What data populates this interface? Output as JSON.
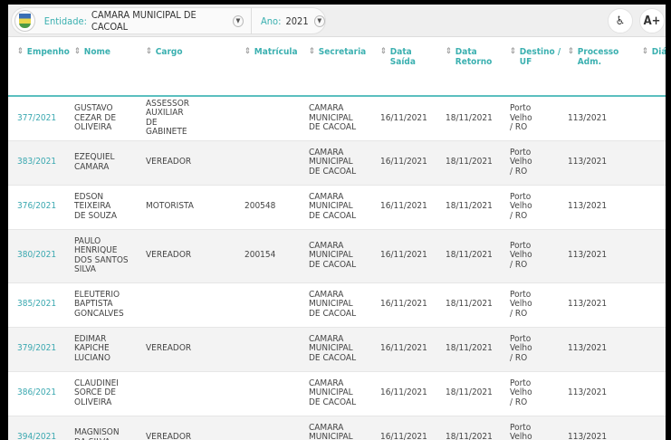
{
  "header": {
    "entity_label": "Entidade:",
    "entity_value": "CAMARA MUNICIPAL DE CACOAL",
    "year_label": "Ano:",
    "year_value": "2021",
    "accessibility_icon": "wheelchair-icon",
    "font_increase_label": "A+"
  },
  "table": {
    "columns": [
      "Empenho",
      "Nome",
      "Cargo",
      "Matrícula",
      "Secretaria",
      "Data Saída",
      "Data Retorno",
      "Destino / UF",
      "Processo Adm.",
      "Diá"
    ],
    "rows": [
      {
        "empenho": "377/2021",
        "nome": "GUSTAVO CEZAR DE OLIVEIRA",
        "cargo": "ASSESSOR AUXILIAR DE GABINETE",
        "matricula": "",
        "secretaria": "CAMARA MUNICIPAL DE CACOAL",
        "saida": "16/11/2021",
        "retorno": "18/11/2021",
        "destino": "Porto Velho / RO",
        "processo": "113/2021"
      },
      {
        "empenho": "383/2021",
        "nome": "EZEQUIEL CAMARA",
        "cargo": "VEREADOR",
        "matricula": "",
        "secretaria": "CAMARA MUNICIPAL DE CACOAL",
        "saida": "16/11/2021",
        "retorno": "18/11/2021",
        "destino": "Porto Velho / RO",
        "processo": "113/2021"
      },
      {
        "empenho": "376/2021",
        "nome": "EDSON TEIXEIRA DE SOUZA",
        "cargo": "MOTORISTA",
        "matricula": "200548",
        "secretaria": "CAMARA MUNICIPAL DE CACOAL",
        "saida": "16/11/2021",
        "retorno": "18/11/2021",
        "destino": "Porto Velho / RO",
        "processo": "113/2021"
      },
      {
        "empenho": "380/2021",
        "nome": "PAULO HENRIQUE DOS SANTOS SILVA",
        "cargo": "VEREADOR",
        "matricula": "200154",
        "secretaria": "CAMARA MUNICIPAL DE CACOAL",
        "saida": "16/11/2021",
        "retorno": "18/11/2021",
        "destino": "Porto Velho / RO",
        "processo": "113/2021"
      },
      {
        "empenho": "385/2021",
        "nome": "ELEUTERIO BAPTISTA GONCALVES",
        "cargo": "",
        "matricula": "",
        "secretaria": "CAMARA MUNICIPAL DE CACOAL",
        "saida": "16/11/2021",
        "retorno": "18/11/2021",
        "destino": "Porto Velho / RO",
        "processo": "113/2021"
      },
      {
        "empenho": "379/2021",
        "nome": "EDIMAR KAPICHE LUCIANO",
        "cargo": "VEREADOR",
        "matricula": "",
        "secretaria": "CAMARA MUNICIPAL DE CACOAL",
        "saida": "16/11/2021",
        "retorno": "18/11/2021",
        "destino": "Porto Velho / RO",
        "processo": "113/2021"
      },
      {
        "empenho": "386/2021",
        "nome": "CLAUDINEI SORCE DE OLIVEIRA",
        "cargo": "",
        "matricula": "",
        "secretaria": "CAMARA MUNICIPAL DE CACOAL",
        "saida": "16/11/2021",
        "retorno": "18/11/2021",
        "destino": "Porto Velho / RO",
        "processo": "113/2021"
      },
      {
        "empenho": "394/2021",
        "nome": "MAGNISON DA SILVA",
        "cargo": "VEREADOR",
        "matricula": "",
        "secretaria": "CAMARA MUNICIPAL DE CACOAL",
        "saida": "16/11/2021",
        "retorno": "18/11/2021",
        "destino": "Porto Velho / RO",
        "processo": "113/2021"
      }
    ]
  }
}
